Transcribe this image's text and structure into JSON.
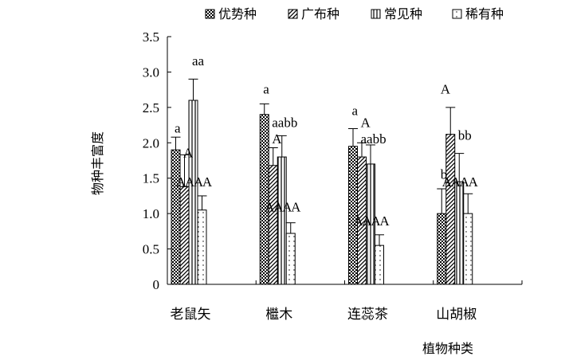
{
  "chart_data": {
    "type": "bar",
    "xlabel": "植物种类",
    "ylabel": "物种丰富度",
    "ylim": [
      0,
      3.5
    ],
    "yticks": [
      "0",
      "0.5",
      "1.0",
      "1.5",
      "2.0",
      "2.5",
      "3.0",
      "3.5"
    ],
    "categories": [
      "老鼠矢",
      "檵木",
      "连蕊茶",
      "山胡椒"
    ],
    "legend_position": "top",
    "series": [
      {
        "name": "优势种",
        "pattern": "checker",
        "values": [
          1.9,
          2.4,
          1.95,
          1.0
        ],
        "errors": [
          0.18,
          0.15,
          0.25,
          0.35
        ],
        "letters_lower": [
          "a",
          "a",
          "a",
          "b"
        ],
        "letters_upper": [
          "A",
          "A",
          "A",
          "A"
        ]
      },
      {
        "name": "广布种",
        "pattern": "diagonal",
        "values": [
          1.38,
          1.68,
          1.8,
          2.12
        ],
        "errors": [
          0.45,
          0.25,
          0.2,
          0.38
        ],
        "letters_lower": [
          "",
          "a",
          "a",
          "b"
        ],
        "letters_upper": [
          "A",
          "A",
          "A",
          "A"
        ]
      },
      {
        "name": "常见种",
        "pattern": "vertical",
        "values": [
          2.6,
          1.8,
          1.7,
          1.45
        ],
        "errors": [
          0.3,
          0.3,
          0.27,
          0.4
        ],
        "letters_lower": [
          "a",
          "b",
          "b",
          "b"
        ],
        "letters_upper": [
          "A",
          "A",
          "A",
          "A"
        ]
      },
      {
        "name": "稀有种",
        "pattern": "dotted",
        "values": [
          1.05,
          0.72,
          0.55,
          1.0
        ],
        "errors": [
          0.2,
          0.15,
          0.15,
          0.28
        ],
        "letters_lower": [
          "",
          "",
          "",
          ""
        ],
        "letters_upper": [
          "A",
          "A",
          "A",
          "A"
        ]
      }
    ],
    "extra_annotations": [
      {
        "text": "a",
        "category": 0,
        "series": 0,
        "value": 2.2
      },
      {
        "text": "A",
        "category": 0,
        "series": 1,
        "value": 1.85
      },
      {
        "text": "aa",
        "category": 0,
        "series": 2,
        "value": 3.15
      },
      {
        "text": "a",
        "category": 1,
        "series": 0,
        "value": 2.75
      },
      {
        "text": "aabb",
        "category": 1,
        "series": 1,
        "value": 2.28
      },
      {
        "text": "A",
        "category": 1,
        "series": 1,
        "value": 2.05
      },
      {
        "text": "a",
        "category": 2,
        "series": 0,
        "value": 2.45
      },
      {
        "text": "A",
        "category": 2,
        "series": 1,
        "value": 2.28
      },
      {
        "text": "aabb",
        "category": 2,
        "series": 1,
        "value": 2.05
      },
      {
        "text": "A",
        "category": 3,
        "series": 0,
        "value": 2.75
      },
      {
        "text": "bb",
        "category": 3,
        "series": 2,
        "value": 2.1
      },
      {
        "text": "b",
        "category": 3,
        "series": 0,
        "value": 1.55
      }
    ]
  }
}
